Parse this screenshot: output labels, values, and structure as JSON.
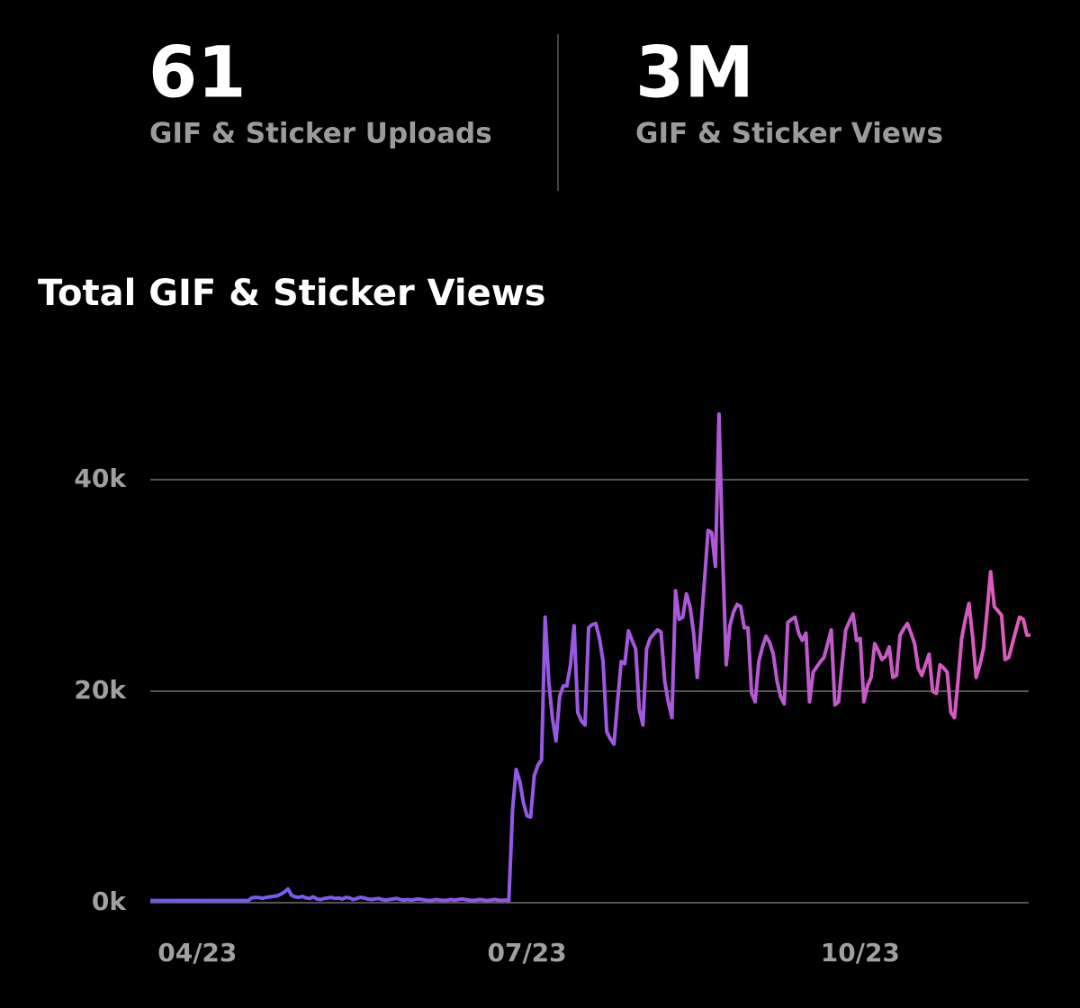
{
  "stats": [
    {
      "value": "61",
      "label": "GIF & Sticker Uploads"
    },
    {
      "value": "3M",
      "label": "GIF & Sticker Views"
    }
  ],
  "chart_data": {
    "type": "line",
    "title": "Total GIF & Sticker Views",
    "categories": [
      null,
      null,
      null,
      null,
      null,
      null,
      null,
      null,
      null,
      null,
      null,
      null,
      null,
      "04/23",
      null,
      null,
      null,
      null,
      null,
      null,
      null,
      null,
      null,
      null,
      null,
      null,
      null,
      null,
      null,
      null,
      null,
      null,
      null,
      null,
      null,
      null,
      null,
      null,
      null,
      null,
      null,
      null,
      null,
      null,
      null,
      null,
      null,
      null,
      null,
      null,
      null,
      null,
      null,
      null,
      null,
      null,
      null,
      null,
      null,
      null,
      null,
      null,
      null,
      null,
      null,
      null,
      null,
      null,
      null,
      null,
      null,
      null,
      null,
      null,
      null,
      null,
      null,
      null,
      null,
      null,
      null,
      null,
      null,
      null,
      null,
      null,
      null,
      null,
      null,
      null,
      null,
      null,
      null,
      null,
      null,
      null,
      null,
      null,
      null,
      null,
      null,
      null,
      null,
      null,
      "07/23",
      null,
      null,
      null,
      null,
      null,
      null,
      null,
      null,
      null,
      null,
      null,
      null,
      null,
      null,
      null,
      null,
      null,
      null,
      null,
      null,
      null,
      null,
      null,
      null,
      null,
      null,
      null,
      null,
      null,
      null,
      null,
      null,
      null,
      null,
      null,
      null,
      null,
      null,
      null,
      null,
      null,
      null,
      null,
      null,
      null,
      null,
      null,
      null,
      null,
      null,
      null,
      null,
      null,
      null,
      null,
      null,
      null,
      null,
      null,
      null,
      null,
      null,
      null,
      null,
      null,
      null,
      null,
      null,
      null,
      null,
      null,
      null,
      null,
      null,
      null,
      null,
      null,
      null,
      null,
      null,
      null,
      null,
      null,
      null,
      null,
      null,
      null,
      null,
      null,
      null,
      null,
      "10/23",
      null,
      null,
      null,
      null,
      null,
      null,
      null,
      null,
      null,
      null,
      null,
      null,
      null,
      null,
      null,
      null,
      null,
      null,
      null,
      null,
      null,
      null,
      null,
      null,
      null,
      null,
      null,
      null,
      null,
      null,
      null,
      null,
      null,
      null,
      null,
      null,
      null,
      null,
      null,
      null,
      null,
      null,
      null,
      null,
      null,
      null,
      null
    ],
    "series": [
      {
        "name": "Total GIF & Sticker Views",
        "colors": [
          "#6a5cf7",
          "#9c58e2",
          "#e05bb8"
        ],
        "values": [
          200,
          200,
          200,
          200,
          200,
          200,
          200,
          200,
          200,
          200,
          200,
          200,
          200,
          200,
          200,
          200,
          200,
          200,
          200,
          200,
          200,
          200,
          200,
          200,
          200,
          200,
          200,
          200,
          450,
          500,
          480,
          420,
          500,
          550,
          600,
          650,
          800,
          1000,
          1300,
          700,
          550,
          500,
          600,
          450,
          400,
          550,
          350,
          300,
          400,
          450,
          500,
          400,
          450,
          350,
          500,
          450,
          300,
          400,
          500,
          450,
          350,
          300,
          350,
          400,
          300,
          250,
          300,
          350,
          400,
          300,
          250,
          300,
          250,
          300,
          350,
          300,
          250,
          200,
          250,
          300,
          250,
          200,
          250,
          300,
          250,
          300,
          350,
          300,
          250,
          200,
          250,
          300,
          250,
          200,
          250,
          300,
          250,
          200,
          250,
          200,
          8800,
          12600,
          11500,
          9500,
          8200,
          8100,
          12000,
          13000,
          13500,
          27000,
          21000,
          17500,
          15300,
          19500,
          20500,
          20500,
          22500,
          26200,
          18000,
          17200,
          16800,
          26000,
          26300,
          26400,
          25000,
          22800,
          16200,
          15500,
          15000,
          19000,
          22800,
          22600,
          25700,
          24800,
          24000,
          18300,
          16800,
          24000,
          25000,
          25400,
          25800,
          25600,
          21000,
          19000,
          17500,
          29500,
          26800,
          27000,
          29200,
          28000,
          25500,
          21300,
          26000,
          30500,
          35200,
          35000,
          31800,
          46200,
          33000,
          22500,
          26200,
          27500,
          28200,
          28000,
          26000,
          26000,
          19800,
          19000,
          22800,
          24200,
          25200,
          24600,
          23500,
          21000,
          19500,
          18800,
          26500,
          26800,
          27000,
          25500,
          24800,
          25500,
          19000,
          21800,
          22300,
          22800,
          23200,
          24500,
          25800,
          18700,
          19000,
          22500,
          25800,
          26600,
          27300,
          24800,
          25000,
          19000,
          20500,
          21300,
          24500,
          23800,
          23000,
          23300,
          24200,
          21300,
          21500,
          25300,
          25900,
          26400,
          25500,
          24500,
          22200,
          21500,
          22500,
          23500,
          20000,
          19800,
          22500,
          22200,
          21800,
          18000,
          17500,
          21000,
          25000,
          26800,
          28300,
          25200,
          21300,
          22500,
          24000,
          27500,
          31300,
          28000,
          27600,
          27200,
          23000,
          23200,
          24500,
          25800,
          27000,
          26800,
          25300,
          25300
        ]
      }
    ],
    "ylim": [
      0,
      48000
    ],
    "yticks": [
      {
        "value": 0,
        "label": "0k"
      },
      {
        "value": 20000,
        "label": "20k"
      },
      {
        "value": 40000,
        "label": "40k"
      }
    ],
    "grid": true
  }
}
